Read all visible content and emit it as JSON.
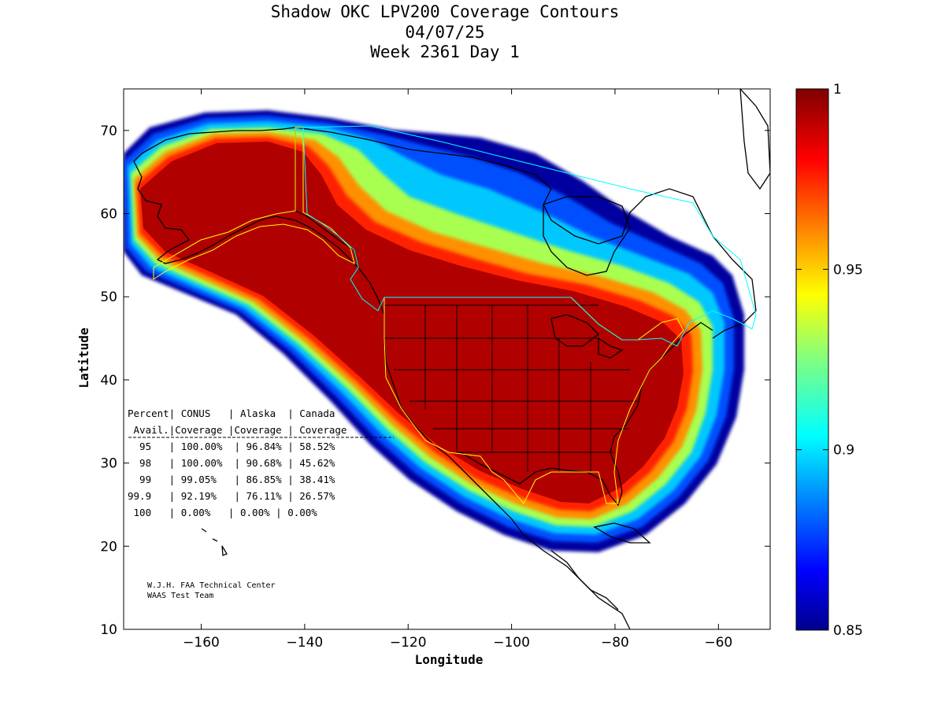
{
  "title": {
    "line1": "Shadow OKC LPV200 Coverage Contours",
    "line2": "04/07/25",
    "line3": "Week 2361 Day 1"
  },
  "axes": {
    "xlabel": "Longitude",
    "ylabel": "Latitude",
    "xlim": [
      -175,
      -50
    ],
    "ylim": [
      10,
      75
    ],
    "xticks": [
      -160,
      -140,
      -120,
      -100,
      -80,
      -60
    ],
    "yticks": [
      10,
      20,
      30,
      40,
      50,
      60,
      70
    ]
  },
  "colorbar": {
    "range": [
      0.85,
      1
    ],
    "ticks": [
      "1",
      "0.95",
      "0.9",
      "0.85"
    ],
    "colormap": "jet"
  },
  "table": {
    "header1": "Percent| CONUS   | Alaska  | Canada",
    "header2": " Avail.|Coverage |Coverage | Coverage",
    "rule": "-----------------------------------------",
    "rows": [
      "  95   | 100.00%  | 96.84% | 58.52%",
      "  98   | 100.00%  | 90.68% | 45.62%",
      "  99   | 99.05%   | 86.85% | 38.41%",
      "99.9   | 92.19%   | 76.11% | 26.57%",
      " 100   | 0.00%   | 0.00% | 0.00%"
    ]
  },
  "credit": {
    "line1": "W.J.H. FAA Technical Center",
    "line2": "WAAS Test Team"
  },
  "colors": {
    "coverage_core": "#b00000",
    "service_area_conus": "#ffff00",
    "service_area_canada": "#00ffff",
    "coastline": "#000000"
  }
}
